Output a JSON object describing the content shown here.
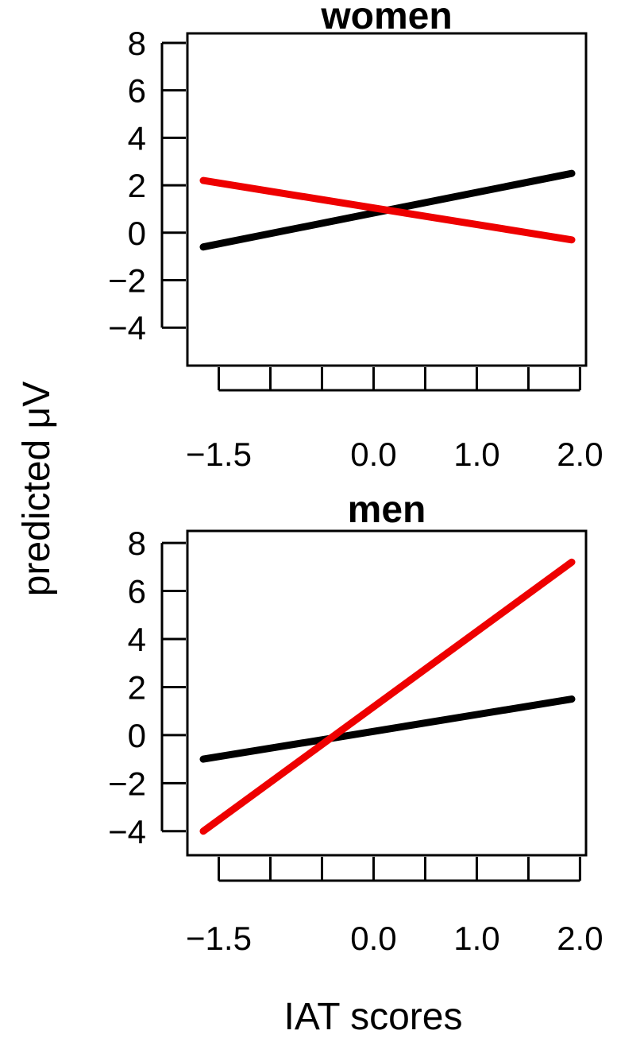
{
  "figure": {
    "ylabel": "predicted μV",
    "xlabel": "IAT scores"
  },
  "chart_data": [
    {
      "type": "line",
      "title": "women",
      "xlim": [
        -1.65,
        1.92
      ],
      "ylim": [
        -5.6,
        8.4
      ],
      "x_ticks": [
        -1.5,
        -1.0,
        -0.5,
        0.0,
        0.5,
        1.0,
        1.5,
        2.0
      ],
      "x_tick_labels": [
        "-1.5",
        "",
        "",
        "0.0",
        "",
        "1.0",
        "",
        "2.0"
      ],
      "y_ticks": [
        -4,
        -2,
        0,
        2,
        4,
        6,
        8
      ],
      "y_tick_labels": [
        "-4",
        "-2",
        "0",
        "2",
        "4",
        "6",
        "8"
      ],
      "series": [
        {
          "color": "#000000",
          "x": [
            -1.65,
            1.92
          ],
          "y": [
            -0.6,
            2.5
          ]
        },
        {
          "color": "#ee0000",
          "x": [
            -1.65,
            1.92
          ],
          "y": [
            2.2,
            -0.3
          ]
        }
      ]
    },
    {
      "type": "line",
      "title": "men",
      "xlim": [
        -1.65,
        1.92
      ],
      "ylim": [
        -5.0,
        8.5
      ],
      "x_ticks": [
        -1.5,
        -1.0,
        -0.5,
        0.0,
        0.5,
        1.0,
        1.5,
        2.0
      ],
      "x_tick_labels": [
        "-1.5",
        "",
        "",
        "0.0",
        "",
        "1.0",
        "",
        "2.0"
      ],
      "y_ticks": [
        -4,
        -2,
        0,
        2,
        4,
        6,
        8
      ],
      "y_tick_labels": [
        "-4",
        "-2",
        "0",
        "2",
        "4",
        "6",
        "8"
      ],
      "series": [
        {
          "color": "#000000",
          "x": [
            -1.65,
            1.92
          ],
          "y": [
            -1.0,
            1.5
          ]
        },
        {
          "color": "#ee0000",
          "x": [
            -1.65,
            1.92
          ],
          "y": [
            -4.0,
            7.2
          ]
        }
      ]
    }
  ]
}
